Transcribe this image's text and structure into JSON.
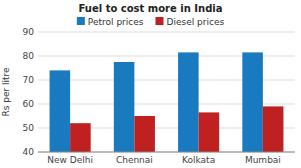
{
  "chart_data": {
    "type": "bar",
    "title": "Fuel to cost more in India",
    "ylabel": "Rs per litre",
    "categories": [
      "New Delhi",
      "Chennai",
      "Kolkata",
      "Mumbai"
    ],
    "series": [
      {
        "name": "Petrol prices",
        "color": "#1a7abf",
        "values": [
          74,
          77.5,
          81.5,
          81.5
        ]
      },
      {
        "name": "Diesel prices",
        "color": "#bf2020",
        "values": [
          52,
          55,
          56.5,
          59
        ]
      }
    ],
    "ylim": [
      40,
      90
    ],
    "yticks": [
      40,
      50,
      60,
      70,
      80,
      90
    ],
    "grid": true,
    "legend": "top"
  }
}
